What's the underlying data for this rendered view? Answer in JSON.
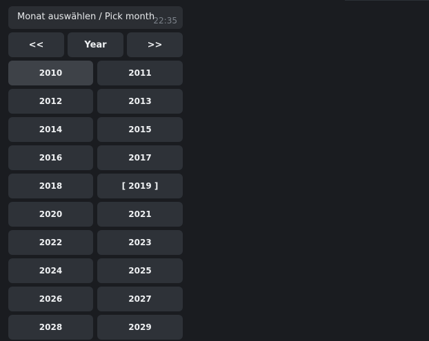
{
  "message": {
    "text": "Monat auswählen / Pick month",
    "time": "22:35"
  },
  "nav": {
    "prev": "<<",
    "center": "Year",
    "next": ">>"
  },
  "years": [
    "2010",
    "2011",
    "2012",
    "2013",
    "2014",
    "2015",
    "2016",
    "2017",
    "2018",
    "[ 2019 ]",
    "2020",
    "2021",
    "2022",
    "2023",
    "2024",
    "2025",
    "2026",
    "2027",
    "2028",
    "2029"
  ],
  "hovered_year": "2010",
  "colors": {
    "background": "#1a1c20",
    "button": "#2e3238",
    "button_hover": "#3e4248",
    "bubble": "#2b2e33"
  }
}
